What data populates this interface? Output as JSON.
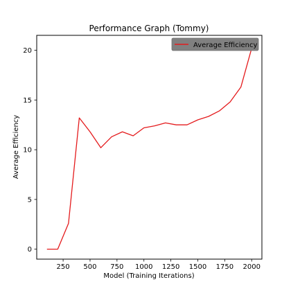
{
  "chart_data": {
    "type": "line",
    "title": "Performance Graph (Tommy)",
    "xlabel": "Model (Training Iterations)",
    "ylabel": "Average Efficiency",
    "xlim": [
      5,
      2095
    ],
    "ylim": [
      -1,
      21.5
    ],
    "xticks": [
      250,
      500,
      750,
      1000,
      1250,
      1500,
      1750,
      2000
    ],
    "yticks": [
      0,
      5,
      10,
      15,
      20
    ],
    "grid": false,
    "legend_position": "top-right",
    "series": [
      {
        "name": "Average Efficiency",
        "color": "#e41a1c",
        "x": [
          100,
          200,
          300,
          400,
          500,
          600,
          700,
          800,
          900,
          1000,
          1100,
          1200,
          1300,
          1400,
          1500,
          1600,
          1700,
          1800,
          1900,
          2000
        ],
        "y": [
          0.0,
          0.0,
          2.6,
          13.2,
          11.8,
          10.2,
          11.3,
          11.8,
          11.4,
          12.2,
          12.4,
          12.7,
          12.5,
          12.5,
          13.0,
          13.35,
          13.9,
          14.8,
          16.3,
          20.2
        ]
      }
    ]
  }
}
